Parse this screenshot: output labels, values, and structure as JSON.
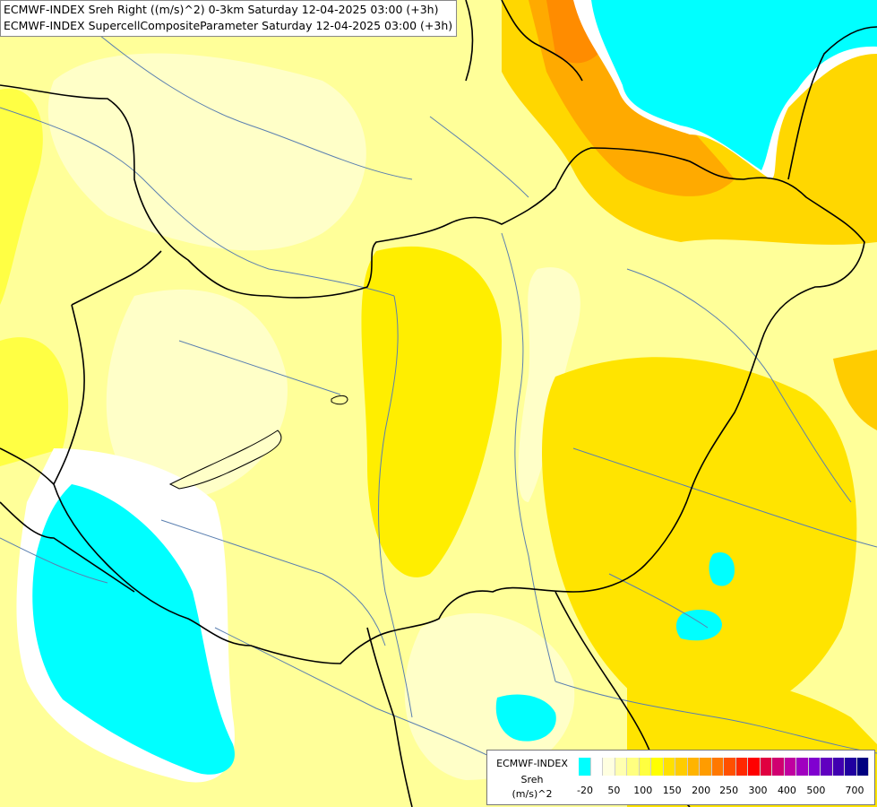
{
  "titles": {
    "line1": "ECMWF-INDEX Sreh Right ((m/s)^2) 0-3km Saturday 12-04-2025 03:00 (+3h)",
    "line2": "ECMWF-INDEX SupercellCompositeParameter Saturday 12-04-2025 03:00 (+3h)"
  },
  "legend": {
    "source": "ECMWF-INDEX",
    "variable": "Sreh",
    "unit": "(m/s)^2",
    "colors": [
      "#00ffff",
      "#ffffff",
      "#ffffe0",
      "#ffffb0",
      "#ffff80",
      "#ffff40",
      "#ffff00",
      "#ffe000",
      "#ffcc00",
      "#ffb400",
      "#ff9c00",
      "#ff7800",
      "#ff5000",
      "#ff2800",
      "#ff0000",
      "#e00040",
      "#d00070",
      "#c000a0",
      "#a000c0",
      "#8000d0",
      "#6000c0",
      "#4000b0",
      "#2000a0",
      "#000080"
    ],
    "ticks": [
      "-20",
      "50",
      "100",
      "150",
      "200",
      "250",
      "300",
      "400",
      "500",
      "700"
    ]
  },
  "map_colors": {
    "base": "#ffff99",
    "pale": "#ffffcc",
    "yellow": "#ffff44",
    "gold": "#ffee00",
    "amber": "#ffd700",
    "orange": "#ffaa00",
    "cyan": "#00ffff",
    "river": "#5a7fb0",
    "border": "#000000"
  }
}
